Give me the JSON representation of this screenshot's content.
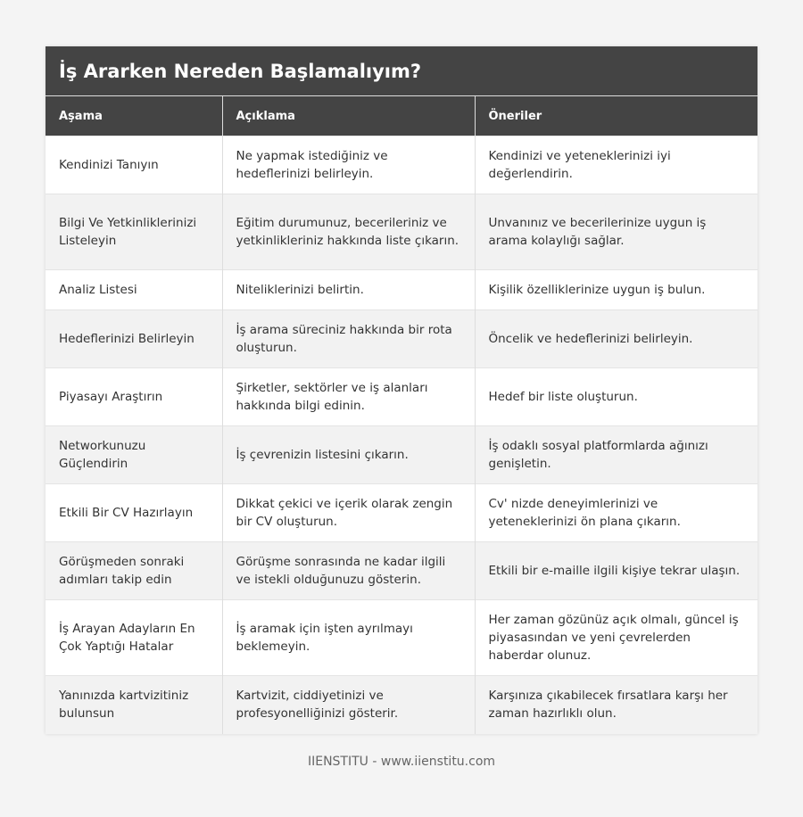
{
  "title": "İş Ararken Nereden Başlamalıyım?",
  "columns": [
    "Aşama",
    "Açıklama",
    "Öneriler"
  ],
  "rows": [
    [
      "Kendinizi Tanıyın",
      "Ne yapmak istediğiniz ve hedeflerinizi belirleyin.",
      "Kendinizi ve yeteneklerinizi iyi değerlendirin."
    ],
    [
      "Bilgi Ve Yetkinliklerinizi Listeleyin",
      "Eğitim durumunuz, becerileriniz ve yetkinlikleriniz hakkında liste çıkarın.",
      "Unvanınız ve becerilerinize uygun iş arama kolaylığı sağlar."
    ],
    [
      "Analiz Listesi",
      "Niteliklerinizi belirtin.",
      "Kişilik özelliklerinize uygun iş bulun."
    ],
    [
      "Hedeflerinizi Belirleyin",
      "İş arama süreciniz hakkında bir rota oluşturun.",
      "Öncelik ve hedeflerinizi belirleyin."
    ],
    [
      "Piyasayı Araştırın",
      "Şirketler, sektörler ve iş alanları hakkında bilgi edinin.",
      "Hedef bir liste oluşturun."
    ],
    [
      "Networkunuzu Güçlendirin",
      "İş çevrenizin listesini çıkarın.",
      "İş odaklı sosyal platformlarda ağınızı genişletin."
    ],
    [
      "Etkili Bir CV Hazırlayın",
      "Dikkat çekici ve içerik olarak zengin bir CV oluşturun.",
      "Cv' nizde deneyimlerinizi ve yeteneklerinizi ön plana çıkarın."
    ],
    [
      "Görüşmeden sonraki adımları takip edin",
      "Görüşme sonrasında ne kadar ilgili ve istekli olduğunuzu gösterin.",
      "Etkili bir e-maille ilgili kişiye tekrar ulaşın."
    ],
    [
      "İş Arayan Adayların En Çok Yaptığı Hatalar",
      "İş aramak için işten ayrılmayı beklemeyin.",
      "Her zaman gözünüz açık olmalı, güncel iş piyasasından ve yeni çevrelerden haberdar olunuz."
    ],
    [
      "Yanınızda kartvizitiniz bulunsun",
      "Kartvizit, ciddiyetinizi ve profesyonelliğinizi gösterir.",
      "Karşınıza çıkabilecek fırsatlara karşı her zaman hazırlıklı olun."
    ]
  ],
  "footer": "IIENSTITU - www.iienstitu.com"
}
